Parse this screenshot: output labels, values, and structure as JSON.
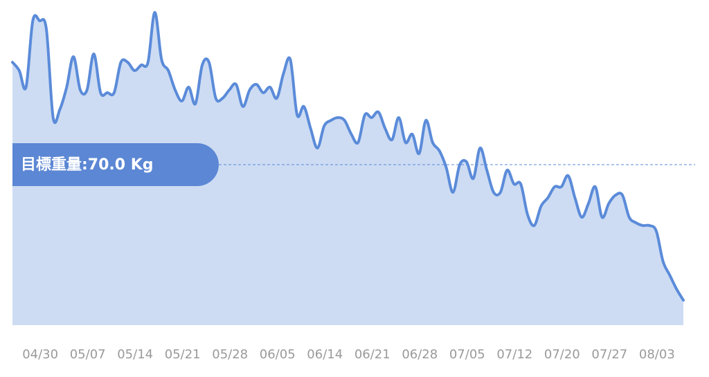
{
  "chart_data": {
    "type": "area",
    "categories": [
      null,
      null,
      null,
      null,
      "04/30",
      null,
      null,
      null,
      null,
      null,
      null,
      "05/07",
      null,
      null,
      null,
      null,
      null,
      null,
      "05/14",
      null,
      null,
      null,
      null,
      null,
      null,
      "05/21",
      null,
      null,
      null,
      null,
      null,
      null,
      "05/28",
      null,
      null,
      null,
      null,
      null,
      null,
      "06/05",
      null,
      null,
      null,
      null,
      null,
      null,
      "06/14",
      null,
      null,
      null,
      null,
      null,
      null,
      "06/21",
      null,
      null,
      null,
      null,
      null,
      null,
      "06/28",
      null,
      null,
      null,
      null,
      null,
      null,
      "07/05",
      null,
      null,
      null,
      null,
      null,
      null,
      "07/12",
      null,
      null,
      null,
      null,
      null,
      null,
      "07/20",
      null,
      null,
      null,
      null,
      null,
      null,
      "07/27",
      null,
      null,
      null,
      null,
      null,
      null,
      "08/03",
      null,
      null,
      null,
      null
    ],
    "values": [
      73.7,
      73.4,
      72.8,
      75.2,
      75.2,
      74.9,
      71.7,
      72.0,
      72.8,
      73.9,
      72.7,
      72.7,
      74.0,
      72.6,
      72.6,
      72.6,
      73.7,
      73.7,
      73.4,
      73.6,
      73.7,
      75.5,
      73.8,
      73.4,
      72.7,
      72.3,
      72.8,
      72.2,
      73.6,
      73.7,
      72.4,
      72.4,
      72.7,
      72.9,
      72.1,
      72.7,
      72.9,
      72.6,
      72.8,
      72.4,
      73.3,
      73.8,
      71.8,
      72.1,
      71.3,
      70.6,
      71.4,
      71.6,
      71.7,
      71.6,
      71.1,
      70.8,
      71.8,
      71.7,
      71.9,
      71.3,
      70.9,
      71.7,
      70.8,
      71.1,
      70.4,
      71.6,
      70.8,
      70.5,
      69.9,
      69.0,
      70.0,
      70.1,
      69.5,
      70.6,
      69.8,
      69.0,
      69.0,
      69.8,
      69.3,
      69.3,
      68.2,
      67.8,
      68.5,
      68.8,
      69.2,
      69.2,
      69.6,
      68.8,
      68.1,
      68.6,
      69.2,
      68.1,
      68.6,
      68.9,
      68.9,
      68.1,
      67.9,
      67.8,
      67.8,
      67.6,
      66.5,
      66.0,
      65.5,
      65.1
    ],
    "ylim": [
      64.2,
      75.9
    ],
    "target": 70,
    "target_label": "目標重量:70.0 Kg",
    "color": "#5b8bd9",
    "area_color": "#cddcf3",
    "target_color": "#5b87d4"
  }
}
